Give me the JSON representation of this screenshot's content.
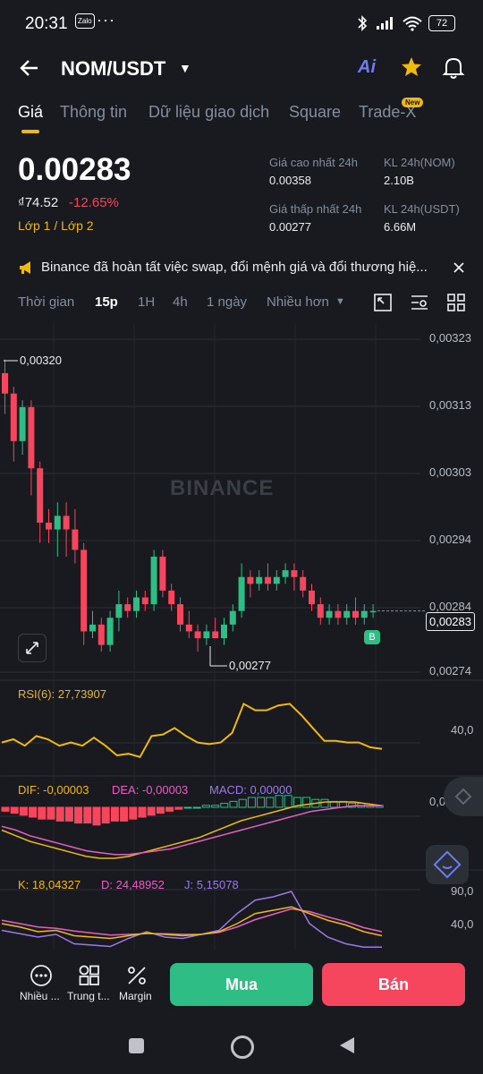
{
  "status_bar": {
    "time": "20:31",
    "zalo": "Zalo",
    "dots": "···",
    "battery": "72"
  },
  "header": {
    "pair": "NOM/USDT"
  },
  "tabs": [
    {
      "label": "Giá",
      "active": true
    },
    {
      "label": "Thông tin"
    },
    {
      "label": "Dữ liệu giao dịch"
    },
    {
      "label": "Square"
    },
    {
      "label": "Trade-X",
      "badge": "New"
    }
  ],
  "price": {
    "last": "0.00283",
    "fiat": "₫74.52",
    "change": "-12.65%",
    "layer": "Lớp 1 / Lớp 2"
  },
  "stats": {
    "high_label": "Giá cao nhất 24h",
    "high": "0.00358",
    "low_label": "Giá thấp nhất 24h",
    "low": "0.00277",
    "vol_nom_label": "KL 24h(NOM)",
    "vol_nom": "2.10B",
    "vol_usdt_label": "KL 24h(USDT)",
    "vol_usdt": "6.66M"
  },
  "notice": {
    "text": "Binance đã hoàn tất việc swap, đổi mệnh giá và đổi thương hiệ..."
  },
  "timeframes": [
    {
      "label": "Thời gian"
    },
    {
      "label": "15p",
      "active": true
    },
    {
      "label": "1H"
    },
    {
      "label": "4h"
    },
    {
      "label": "1 ngày"
    },
    {
      "label": "Nhiều hơn"
    }
  ],
  "chart_data": {
    "type": "candlestick",
    "watermark": "BINANCE",
    "y_ticks": [
      "0,00323",
      "0,00313",
      "0,00303",
      "0,00294",
      "0,00284",
      "0,00274"
    ],
    "current_price_label": "0,00283",
    "high_marker": "0,00320",
    "low_marker": "0,00277",
    "trade_marker": "B",
    "ohlc": [
      [
        0.00318,
        0.0032,
        0.00312,
        0.00315
      ],
      [
        0.00315,
        0.00316,
        0.00305,
        0.00308
      ],
      [
        0.00308,
        0.00314,
        0.00306,
        0.00313
      ],
      [
        0.00313,
        0.00314,
        0.003,
        0.00304
      ],
      [
        0.00304,
        0.00305,
        0.00293,
        0.00296
      ],
      [
        0.00296,
        0.00298,
        0.00293,
        0.00295
      ],
      [
        0.00295,
        0.00299,
        0.00291,
        0.00297
      ],
      [
        0.00297,
        0.00299,
        0.00291,
        0.00295
      ],
      [
        0.00295,
        0.00298,
        0.0029,
        0.00292
      ],
      [
        0.00292,
        0.00293,
        0.00278,
        0.0028
      ],
      [
        0.0028,
        0.00283,
        0.00279,
        0.00281
      ],
      [
        0.00281,
        0.00282,
        0.00277,
        0.00278
      ],
      [
        0.00278,
        0.00283,
        0.00277,
        0.00282
      ],
      [
        0.00282,
        0.00286,
        0.0028,
        0.00284
      ],
      [
        0.00284,
        0.00285,
        0.00282,
        0.00283
      ],
      [
        0.00283,
        0.00286,
        0.00282,
        0.00285
      ],
      [
        0.00285,
        0.00286,
        0.00283,
        0.00284
      ],
      [
        0.00284,
        0.00292,
        0.00283,
        0.00291
      ],
      [
        0.00291,
        0.00292,
        0.00285,
        0.00286
      ],
      [
        0.00286,
        0.00287,
        0.00283,
        0.00284
      ],
      [
        0.00284,
        0.00285,
        0.0028,
        0.00281
      ],
      [
        0.00281,
        0.00283,
        0.00279,
        0.0028
      ],
      [
        0.0028,
        0.00281,
        0.00277,
        0.00279
      ],
      [
        0.00279,
        0.00281,
        0.00278,
        0.0028
      ],
      [
        0.0028,
        0.00282,
        0.00279,
        0.00279
      ],
      [
        0.00279,
        0.00282,
        0.00278,
        0.00281
      ],
      [
        0.00281,
        0.00284,
        0.0028,
        0.00283
      ],
      [
        0.00283,
        0.0029,
        0.00282,
        0.00288
      ],
      [
        0.00288,
        0.00289,
        0.00285,
        0.00287
      ],
      [
        0.00287,
        0.00289,
        0.00286,
        0.00288
      ],
      [
        0.00288,
        0.0029,
        0.00286,
        0.00287
      ],
      [
        0.00287,
        0.00289,
        0.00286,
        0.00288
      ],
      [
        0.00288,
        0.0029,
        0.00287,
        0.00289
      ],
      [
        0.00289,
        0.0029,
        0.00286,
        0.00288
      ],
      [
        0.00288,
        0.00289,
        0.00285,
        0.00286
      ],
      [
        0.00286,
        0.00287,
        0.00283,
        0.00284
      ],
      [
        0.00284,
        0.00285,
        0.00281,
        0.00282
      ],
      [
        0.00282,
        0.00284,
        0.00281,
        0.00283
      ],
      [
        0.00283,
        0.00284,
        0.00281,
        0.00282
      ],
      [
        0.00282,
        0.00284,
        0.00281,
        0.00283
      ],
      [
        0.00283,
        0.00285,
        0.00281,
        0.00282
      ],
      [
        0.00282,
        0.00284,
        0.00281,
        0.00283
      ],
      [
        0.00283,
        0.00284,
        0.00282,
        0.00283
      ]
    ],
    "rsi": {
      "label": "RSI(6): 27,73907",
      "tick": "40,0",
      "values": [
        38,
        40,
        36,
        42,
        40,
        36,
        38,
        36,
        41,
        36,
        30,
        31,
        29,
        42,
        43,
        47,
        42,
        38,
        37,
        38,
        44,
        62,
        58,
        58,
        61,
        62,
        55,
        47,
        39,
        39,
        38,
        38,
        35,
        34
      ]
    },
    "macd": {
      "dif_label": "DIF: -0,00003",
      "dea_label": "DEA: -0,00003",
      "macd_label": "MACD: 0,00000",
      "tick": "0,00000",
      "hist": [
        -2,
        -3,
        -4,
        -5,
        -6,
        -6,
        -7,
        -7,
        -8,
        -8,
        -9,
        -8,
        -7,
        -7,
        -6,
        -5,
        -4,
        -3,
        -2,
        -1,
        0,
        0,
        1,
        1,
        2,
        3,
        4,
        5,
        5,
        5,
        6,
        6,
        5,
        5,
        4,
        4,
        3,
        3,
        2,
        2,
        1,
        1
      ],
      "dif": [
        -5,
        -8,
        -11,
        -13,
        -15,
        -17,
        -19,
        -20,
        -20,
        -19,
        -17,
        -15,
        -13,
        -11,
        -9,
        -6,
        -3,
        0,
        2,
        4,
        6,
        8,
        9,
        10,
        10,
        10,
        9,
        8
      ],
      "dea": [
        -3,
        -5,
        -8,
        -10,
        -12,
        -14,
        -16,
        -17,
        -18,
        -18,
        -17,
        -16,
        -15,
        -13,
        -11,
        -9,
        -7,
        -5,
        -3,
        -1,
        1,
        3,
        5,
        6,
        7,
        8,
        8,
        8
      ]
    },
    "kdj": {
      "k_label": "K: 18,04327",
      "d_label": "D: 24,48952",
      "j_label": "J: 5,15078",
      "ticks": [
        "90,0",
        "40,0"
      ],
      "k": [
        40,
        35,
        28,
        30,
        22,
        20,
        18,
        22,
        26,
        24,
        22,
        24,
        28,
        40,
        55,
        60,
        65,
        55,
        45,
        38,
        28,
        22
      ],
      "d": [
        45,
        40,
        35,
        33,
        29,
        26,
        23,
        24,
        25,
        25,
        24,
        24,
        27,
        35,
        46,
        54,
        62,
        58,
        50,
        43,
        34,
        28
      ],
      "j": [
        30,
        25,
        20,
        24,
        10,
        8,
        6,
        18,
        28,
        20,
        18,
        24,
        30,
        55,
        75,
        80,
        88,
        40,
        20,
        10,
        5,
        5
      ]
    }
  },
  "bottom_nav": [
    {
      "label": "Nhiều ...",
      "icon": "more-icon"
    },
    {
      "label": "Trung t...",
      "icon": "grid-icon"
    },
    {
      "label": "Margin",
      "icon": "percent-icon"
    }
  ],
  "actions": {
    "buy": "Mua",
    "sell": "Bán"
  },
  "colors": {
    "up": "#2ebd85",
    "down": "#f6465d",
    "accent": "#f0b90b",
    "bg": "#181a20"
  }
}
